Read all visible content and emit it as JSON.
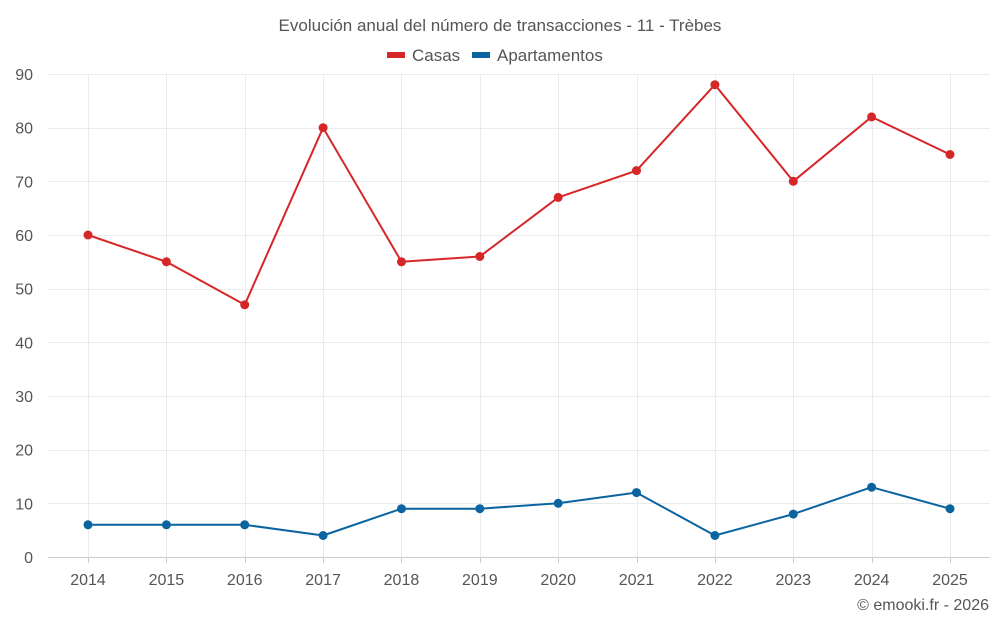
{
  "chart_data": {
    "type": "line",
    "title": "Evolución anual del número de transacciones - 11 - Trèbes",
    "categories": [
      "2014",
      "2015",
      "2016",
      "2017",
      "2018",
      "2019",
      "2020",
      "2021",
      "2022",
      "2023",
      "2024",
      "2025"
    ],
    "series": [
      {
        "name": "Casas",
        "color": "#d62728",
        "values": [
          60,
          55,
          47,
          80,
          55,
          56,
          67,
          72,
          88,
          70,
          82,
          75
        ]
      },
      {
        "name": "Apartamentos",
        "color": "#0a64a0",
        "values": [
          6,
          6,
          6,
          4,
          9,
          9,
          10,
          12,
          4,
          8,
          13,
          9
        ]
      }
    ],
    "ylim": [
      0,
      90
    ],
    "yticks": [
      0,
      10,
      20,
      30,
      40,
      50,
      60,
      70,
      80,
      90
    ],
    "xlabel": "",
    "ylabel": "",
    "grid": true,
    "legend_position": "top-center"
  },
  "credit": "© emooki.fr - 2026"
}
